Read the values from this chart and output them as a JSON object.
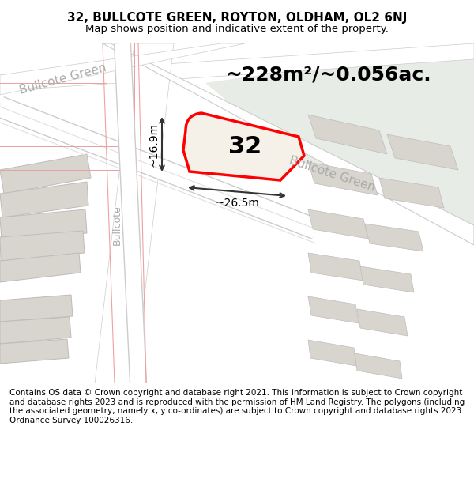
{
  "title_line1": "32, BULLCOTE GREEN, ROYTON, OLDHAM, OL2 6NJ",
  "title_line2": "Map shows position and indicative extent of the property.",
  "area_label": "~228m²/~0.056ac.",
  "number_label": "32",
  "dim_width": "~26.5m",
  "dim_height": "~16.9m",
  "street_name_diagonal": "Bullcote Green",
  "street_name_top": "Bullcote Green",
  "street_name_left": "Bullcote Green",
  "footer_text": "Contains OS data © Crown copyright and database right 2021. This information is subject to Crown copyright and database rights 2023 and is reproduced with the permission of HM Land Registry. The polygons (including the associated geometry, namely x, y co-ordinates) are subject to Crown copyright and database rights 2023 Ordnance Survey 100026316.",
  "bg_color_main": "#f0ede8",
  "bg_color_green": "#e8ece6",
  "bg_color_white": "#ffffff",
  "road_color": "#ffffff",
  "road_border_color": "#cccccc",
  "building_color": "#d8d5cf",
  "building_border_color": "#c8c5bf",
  "plot_color": "#f5f0e8",
  "plot_border_color": "#ff0000",
  "dim_line_color": "#333333",
  "street_label_color": "#aaaaaa",
  "text_color": "#000000",
  "title_fontsize": 11,
  "subtitle_fontsize": 9.5,
  "area_fontsize": 18,
  "number_fontsize": 22,
  "dim_fontsize": 10,
  "street_fontsize": 11,
  "footer_fontsize": 7.5
}
